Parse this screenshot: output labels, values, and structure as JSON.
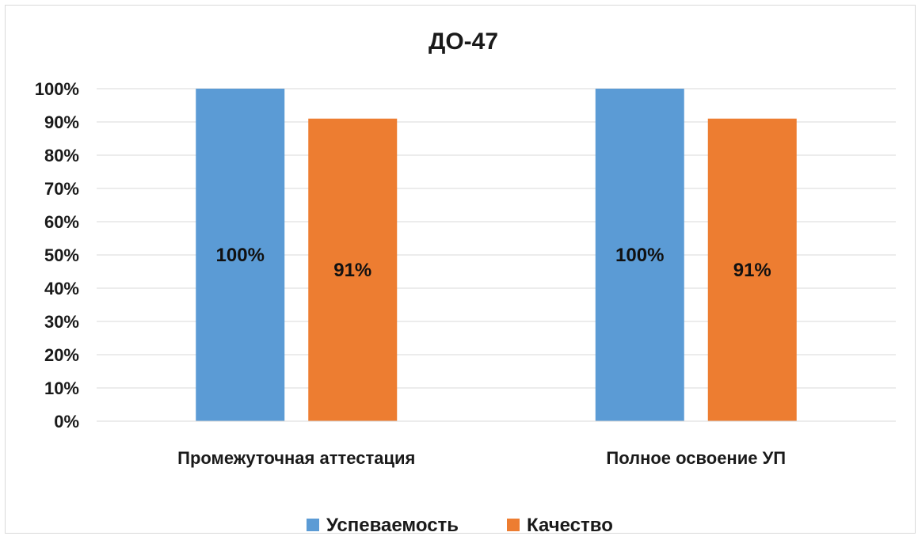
{
  "chart_data": {
    "type": "bar",
    "title": "ДО-47",
    "categories": [
      "Промежуточная аттестация",
      "Полное освоение УП"
    ],
    "series": [
      {
        "name": "Успеваемость",
        "values": [
          100,
          100
        ],
        "labels": [
          "100%",
          "100%"
        ],
        "color": "#5b9bd5"
      },
      {
        "name": "Качество",
        "values": [
          91,
          91
        ],
        "labels": [
          "91%",
          "91%"
        ],
        "color": "#ed7d31"
      }
    ],
    "ylim": [
      0,
      100
    ],
    "yticks": [
      "0%",
      "10%",
      "20%",
      "30%",
      "40%",
      "50%",
      "60%",
      "70%",
      "80%",
      "90%",
      "100%"
    ],
    "grid": true,
    "legend": "bottom"
  }
}
